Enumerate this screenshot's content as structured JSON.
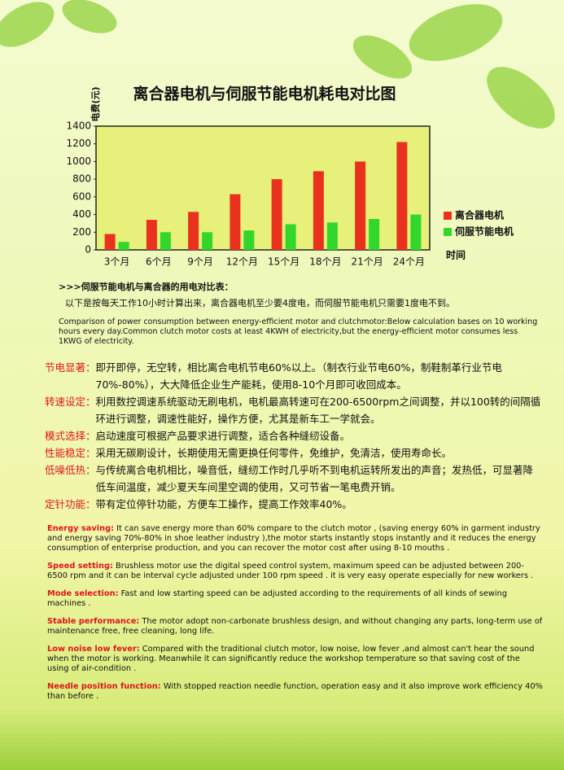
{
  "chart_data": {
    "type": "bar",
    "title": "离合器电机与伺服节能电机耗电对比图",
    "y_label": "电费(元)",
    "x_label": "时间",
    "categories": [
      "3个月",
      "6个月",
      "9个月",
      "12个月",
      "15个月",
      "18个月",
      "21个月",
      "24个月"
    ],
    "series": [
      {
        "name": "离合器电机",
        "color": "#e8321e",
        "values": [
          180,
          340,
          430,
          630,
          800,
          890,
          1000,
          1220
        ]
      },
      {
        "name": "伺服节能电机",
        "color": "#33d62a",
        "values": [
          90,
          200,
          200,
          220,
          290,
          310,
          350,
          400
        ]
      }
    ],
    "ylim": [
      0,
      1400
    ],
    "yticks": [
      0,
      200,
      400,
      600,
      800,
      1000,
      1200,
      1400
    ],
    "legend": "right"
  },
  "compare": {
    "heading": ">>>伺服节能电机与离合器的用电对比表：",
    "line": "以下是按每天工作10小时计算出来，离合器电机至少要4度电，而伺服节能电机只需要1度电不到。",
    "english": "Comparison of power consumption between energy-efficient motor and clutchmotor:Below calculation bases on 10 working hours every day.Common clutch motor costs at least 4KWH of electricity,but the energy-efficient motor consumes less 1KWG of electricity."
  },
  "features": [
    {
      "label": "节电显著：",
      "text": "即开即停，无空转，相比离合电机节电60%以上。（制衣行业节电60%，制鞋制革行业节电70%-80%），大大降低企业生产能耗，使用8-10个月即可收回成本。"
    },
    {
      "label": "转速设定：",
      "text": "利用数控调速系统驱动无刷电机，电机最高转速可在200-6500rpm之间调整，并以100转的间隔循环进行调整，调速性能好，操作方便，尤其是新车工一学就会。"
    },
    {
      "label": "模式选择：",
      "text": "启动速度可根据产品要求进行调整，适合各种缝纫设备。"
    },
    {
      "label": "性能稳定：",
      "text": "采用无碳刷设计，长期使用无需更换任何零件，免维护，免清洁，使用寿命长。"
    },
    {
      "label": "低噪低热：",
      "text": "与传统离合电机相比，噪音低，缝纫工作时几乎听不到电机运转所发出的声音；发热低，可显著降低车间温度，减少夏天车间里空调的使用，又可节省一笔电费开销。"
    },
    {
      "label": "定针功能：",
      "text": "带有定位停针功能，方便车工操作，提高工作效率40%。"
    }
  ],
  "english_features": [
    {
      "label": "Energy saving:",
      "text": "It can save energy more than 60% compare to the clutch motor , (saving energy 60% in garment industry and energy saving 70%-80% in shoe leather industry ),the motor starts instantly stops instantly and it reduces the energy consumption of enterprise production, and you can recover the motor cost after using 8-10 mouths ."
    },
    {
      "label": "Speed setting:",
      "text": "Brushless motor use the digital speed control system, maximum speed can be adjusted between 200-6500 rpm and it can be interval cycle adjusted under 100 rpm speed . it is very easy operate especially for new workers ."
    },
    {
      "label": "Mode selection:",
      "text": "Fast and low starting speed can be adjusted according to the requirements of all kinds of sewing machines ."
    },
    {
      "label": "Stable performance:",
      "text": "The motor adopt non-carbonate brushless design, and without changing any parts, long-term use of maintenance free, free cleaning, long life."
    },
    {
      "label": "Low noise low fever:",
      "text": "Compared with the traditional clutch motor, low noise, low fever ,and almost can't hear the sound when the motor is working. Meanwhile it can significantly reduce the workshop temperature so that saving cost of the using of air-condition ."
    },
    {
      "label": "Needle position function:",
      "text": "With stopped reaction needle function, operation easy and it also improve work efficiency 40% than before ."
    }
  ]
}
